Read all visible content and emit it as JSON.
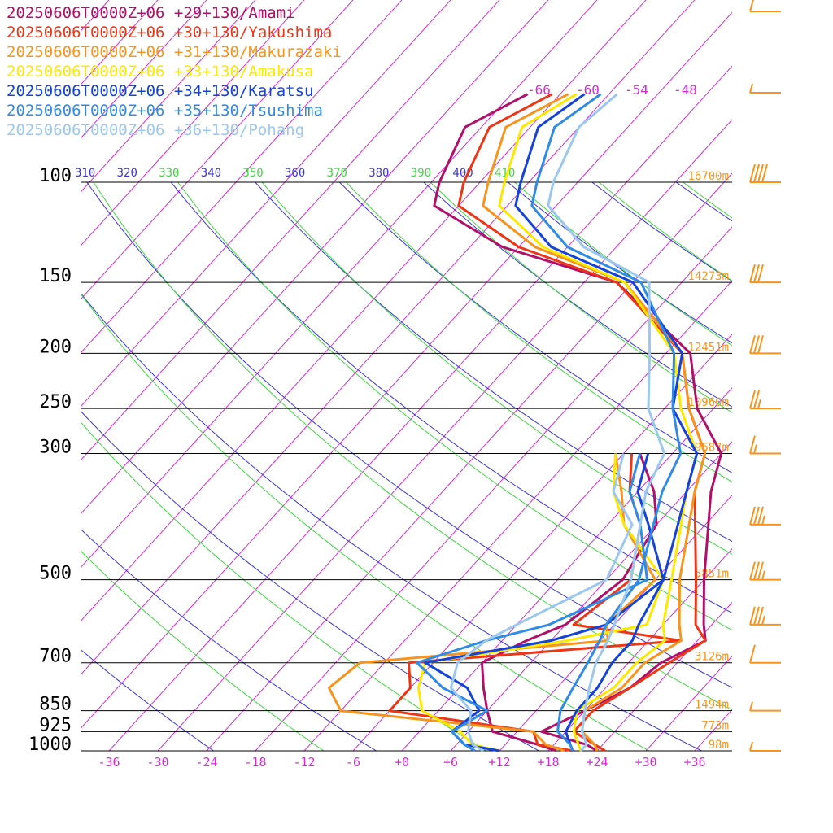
{
  "chart_data": {
    "type": "line",
    "xlim": [
      -42,
      40
    ],
    "x_ticks": [
      {
        "v": -36,
        "label": "-36"
      },
      {
        "v": -30,
        "label": "-30"
      },
      {
        "v": -24,
        "label": "-24"
      },
      {
        "v": -18,
        "label": "-18"
      },
      {
        "v": -12,
        "label": "-12"
      },
      {
        "v": -6,
        "label": "-6"
      },
      {
        "v": 0,
        "label": "+0"
      },
      {
        "v": 6,
        "label": "+6"
      },
      {
        "v": 12,
        "label": "+12"
      },
      {
        "v": 18,
        "label": "+18"
      },
      {
        "v": 24,
        "label": "+24"
      },
      {
        "v": 30,
        "label": "+30"
      },
      {
        "v": 36,
        "label": "+36"
      }
    ],
    "pressure_levels": [
      {
        "p": 100,
        "label": "100",
        "height": "16700m"
      },
      {
        "p": 150,
        "label": "150",
        "height": "14273m"
      },
      {
        "p": 200,
        "label": "200",
        "height": "12451m"
      },
      {
        "p": 250,
        "label": "250",
        "height": "10960m"
      },
      {
        "p": 300,
        "label": "300",
        "height": "9687m"
      },
      {
        "p": 500,
        "label": "500",
        "height": "5851m"
      },
      {
        "p": 700,
        "label": "700",
        "height": "3126m"
      },
      {
        "p": 850,
        "label": "850",
        "height": "1494m"
      },
      {
        "p": 925,
        "label": "925",
        "height": "773m"
      },
      {
        "p": 1000,
        "label": "1000",
        "height": "98m"
      }
    ],
    "isotherm_labels": [
      "-66",
      "-60",
      "-54",
      "-48"
    ],
    "theta_labels": [
      {
        "v": 310,
        "label": "310",
        "kind": "dry"
      },
      {
        "v": 320,
        "label": "320",
        "kind": "dry"
      },
      {
        "v": 330,
        "label": "330",
        "kind": "moist"
      },
      {
        "v": 340,
        "label": "340",
        "kind": "dry"
      },
      {
        "v": 350,
        "label": "350",
        "kind": "moist"
      },
      {
        "v": 360,
        "label": "360",
        "kind": "dry"
      },
      {
        "v": 370,
        "label": "370",
        "kind": "moist"
      },
      {
        "v": 380,
        "label": "380",
        "kind": "dry"
      },
      {
        "v": 390,
        "label": "390",
        "kind": "moist"
      },
      {
        "v": 400,
        "label": "400",
        "kind": "dry"
      },
      {
        "v": 410,
        "label": "410",
        "kind": "moist"
      }
    ],
    "series": [
      {
        "name": "20250606T0000Z+06 +29+130/Amami",
        "color": "#b0106a",
        "temp": [
          [
            1000,
            24
          ],
          [
            975,
            22
          ],
          [
            925,
            15
          ],
          [
            850,
            18
          ],
          [
            775,
            21
          ],
          [
            700,
            22
          ],
          [
            640,
            25
          ],
          [
            600,
            23
          ],
          [
            500,
            18
          ],
          [
            350,
            9
          ],
          [
            300,
            6
          ],
          [
            250,
            -2
          ],
          [
            200,
            -9
          ],
          [
            150,
            -26
          ],
          [
            130,
            -44
          ],
          [
            110,
            -57
          ],
          [
            100,
            -59
          ],
          [
            80,
            -62
          ],
          [
            70,
            -58
          ]
        ],
        "dew": [
          [
            1000,
            19
          ],
          [
            975,
            16
          ],
          [
            925,
            9
          ],
          [
            850,
            6
          ],
          [
            775,
            3
          ],
          [
            700,
            0
          ],
          [
            640,
            3
          ],
          [
            600,
            6
          ],
          [
            500,
            8
          ],
          [
            400,
            6
          ],
          [
            350,
            2
          ],
          [
            300,
            -4
          ]
        ]
      },
      {
        "name": "20250606T0000Z+06 +30+130/Yakushima",
        "color": "#ee3515",
        "temp": [
          [
            1000,
            25
          ],
          [
            975,
            23
          ],
          [
            925,
            19
          ],
          [
            850,
            19
          ],
          [
            775,
            21
          ],
          [
            700,
            23
          ],
          [
            640,
            25
          ],
          [
            600,
            22
          ],
          [
            500,
            17
          ],
          [
            350,
            7
          ],
          [
            300,
            4
          ],
          [
            250,
            -3
          ],
          [
            200,
            -10
          ],
          [
            150,
            -26
          ],
          [
            130,
            -42
          ],
          [
            110,
            -54
          ],
          [
            100,
            -56
          ],
          [
            80,
            -59
          ],
          [
            70,
            -55
          ]
        ],
        "dew": [
          [
            1000,
            21
          ],
          [
            975,
            16
          ],
          [
            925,
            14
          ],
          [
            850,
            -6
          ],
          [
            775,
            -6
          ],
          [
            700,
            -9
          ],
          [
            640,
            22
          ],
          [
            600,
            7
          ],
          [
            500,
            9
          ],
          [
            400,
            4
          ],
          [
            350,
            -1
          ],
          [
            300,
            -5
          ]
        ]
      },
      {
        "name": "20250606T0000Z+06 +31+130/Makurazaki",
        "color": "#f7941d",
        "temp": [
          [
            1000,
            24
          ],
          [
            975,
            23
          ],
          [
            925,
            20
          ],
          [
            850,
            18
          ],
          [
            775,
            20
          ],
          [
            700,
            20
          ],
          [
            640,
            22
          ],
          [
            600,
            20
          ],
          [
            500,
            15
          ],
          [
            350,
            7
          ],
          [
            300,
            4
          ],
          [
            250,
            -3
          ],
          [
            200,
            -10
          ],
          [
            150,
            -25
          ],
          [
            130,
            -40
          ],
          [
            110,
            -51
          ],
          [
            100,
            -53
          ],
          [
            80,
            -57
          ],
          [
            70,
            -53
          ]
        ],
        "dew": [
          [
            1000,
            20
          ],
          [
            975,
            17
          ],
          [
            925,
            14
          ],
          [
            850,
            -12
          ],
          [
            775,
            -16
          ],
          [
            700,
            -15
          ],
          [
            640,
            13
          ],
          [
            600,
            11
          ],
          [
            500,
            12
          ],
          [
            400,
            2
          ],
          [
            350,
            -2
          ],
          [
            300,
            -7
          ]
        ]
      },
      {
        "name": "20250606T0000Z+06 +33+130/Amakusa",
        "color": "#fde800",
        "temp": [
          [
            1000,
            22
          ],
          [
            975,
            21
          ],
          [
            925,
            19
          ],
          [
            850,
            17
          ],
          [
            775,
            19
          ],
          [
            700,
            19
          ],
          [
            640,
            20
          ],
          [
            600,
            18
          ],
          [
            500,
            14
          ],
          [
            350,
            6
          ],
          [
            300,
            3
          ],
          [
            250,
            -4
          ],
          [
            200,
            -11
          ],
          [
            150,
            -25
          ],
          [
            130,
            -39
          ],
          [
            110,
            -49
          ],
          [
            100,
            -51
          ],
          [
            80,
            -55
          ],
          [
            70,
            -52
          ]
        ],
        "dew": [
          [
            1000,
            12
          ],
          [
            975,
            8
          ],
          [
            925,
            5
          ],
          [
            850,
            -2
          ],
          [
            775,
            -5
          ],
          [
            700,
            -7
          ],
          [
            640,
            8
          ],
          [
            600,
            16
          ],
          [
            500,
            13
          ],
          [
            400,
            2
          ],
          [
            350,
            -3
          ],
          [
            300,
            -7
          ]
        ]
      },
      {
        "name": "20250606T0000Z+06 +34+130/Karatsu",
        "color": "#1443d8",
        "temp": [
          [
            1000,
            21
          ],
          [
            975,
            20
          ],
          [
            925,
            18
          ],
          [
            850,
            17
          ],
          [
            775,
            17
          ],
          [
            700,
            16
          ],
          [
            640,
            16
          ],
          [
            600,
            15
          ],
          [
            500,
            13
          ],
          [
            350,
            6
          ],
          [
            300,
            3
          ],
          [
            250,
            -5
          ],
          [
            200,
            -10
          ],
          [
            150,
            -24
          ],
          [
            130,
            -38
          ],
          [
            110,
            -47
          ],
          [
            100,
            -49
          ],
          [
            80,
            -53
          ],
          [
            70,
            -51
          ]
        ],
        "dew": [
          [
            1000,
            12
          ],
          [
            975,
            7
          ],
          [
            925,
            4
          ],
          [
            850,
            5
          ],
          [
            775,
            1
          ],
          [
            700,
            -7
          ],
          [
            640,
            6
          ],
          [
            600,
            11
          ],
          [
            500,
            13
          ],
          [
            400,
            5
          ],
          [
            350,
            0
          ],
          [
            300,
            -3
          ]
        ]
      },
      {
        "name": "20250606T0000Z+06 +35+130/Tsushima",
        "color": "#2f8be6",
        "temp": [
          [
            1000,
            21
          ],
          [
            975,
            20
          ],
          [
            925,
            17
          ],
          [
            850,
            15
          ],
          [
            775,
            14
          ],
          [
            700,
            13
          ],
          [
            640,
            12
          ],
          [
            600,
            11
          ],
          [
            500,
            10
          ],
          [
            350,
            3
          ],
          [
            300,
            1
          ],
          [
            250,
            -5
          ],
          [
            200,
            -11
          ],
          [
            150,
            -23
          ],
          [
            130,
            -36
          ],
          [
            110,
            -45
          ],
          [
            100,
            -47
          ],
          [
            80,
            -51
          ],
          [
            70,
            -49
          ]
        ],
        "dew": [
          [
            1000,
            9
          ],
          [
            975,
            7
          ],
          [
            925,
            4
          ],
          [
            850,
            6
          ],
          [
            775,
            -2
          ],
          [
            700,
            -8
          ],
          [
            640,
            -2
          ],
          [
            600,
            4
          ],
          [
            500,
            11
          ],
          [
            400,
            4
          ],
          [
            350,
            -1
          ],
          [
            300,
            -4
          ]
        ]
      },
      {
        "name": "20250606T0000Z+06 +36+130/Pohang",
        "color": "#9bc8f0",
        "temp": [
          [
            1000,
            22
          ],
          [
            975,
            22
          ],
          [
            925,
            20
          ],
          [
            850,
            18
          ],
          [
            775,
            16
          ],
          [
            700,
            14
          ],
          [
            640,
            13
          ],
          [
            600,
            12
          ],
          [
            500,
            9
          ],
          [
            350,
            1
          ],
          [
            300,
            -1
          ],
          [
            250,
            -8
          ],
          [
            200,
            -14
          ],
          [
            150,
            -22
          ],
          [
            130,
            -34
          ],
          [
            110,
            -43
          ],
          [
            100,
            -45
          ],
          [
            80,
            -48
          ],
          [
            70,
            -47
          ]
        ],
        "dew": [
          [
            1000,
            10
          ],
          [
            975,
            8
          ],
          [
            925,
            6
          ],
          [
            850,
            4
          ],
          [
            775,
            -1
          ],
          [
            700,
            -3
          ],
          [
            640,
            -2
          ],
          [
            600,
            0
          ],
          [
            500,
            6
          ],
          [
            400,
            3
          ],
          [
            350,
            -3
          ],
          [
            300,
            -6
          ]
        ]
      }
    ],
    "wind_barbs": [
      {
        "p": 60,
        "color": "#f7941d",
        "speed": 10
      },
      {
        "p": 85,
        "color": "#f7941d",
        "speed": 5
      },
      {
        "p": 100,
        "color": "#f7941d",
        "speed": 40
      },
      {
        "p": 150,
        "color": "#f7941d",
        "speed": 30
      },
      {
        "p": 200,
        "color": "#f7941d",
        "speed": 30
      },
      {
        "p": 250,
        "color": "#f7941d",
        "speed": 25
      },
      {
        "p": 300,
        "color": "#f7941d",
        "speed": 15
      },
      {
        "p": 400,
        "color": "#f7941d",
        "speed": 35
      },
      {
        "p": 500,
        "color": "#f7941d",
        "speed": 35
      },
      {
        "p": 600,
        "color": "#f7941d",
        "speed": 35
      },
      {
        "p": 700,
        "color": "#f7941d",
        "speed": 10
      },
      {
        "p": 850,
        "color": "#f7941d",
        "speed": 5
      },
      {
        "p": 1000,
        "color": "#f7941d",
        "speed": 5
      }
    ]
  }
}
